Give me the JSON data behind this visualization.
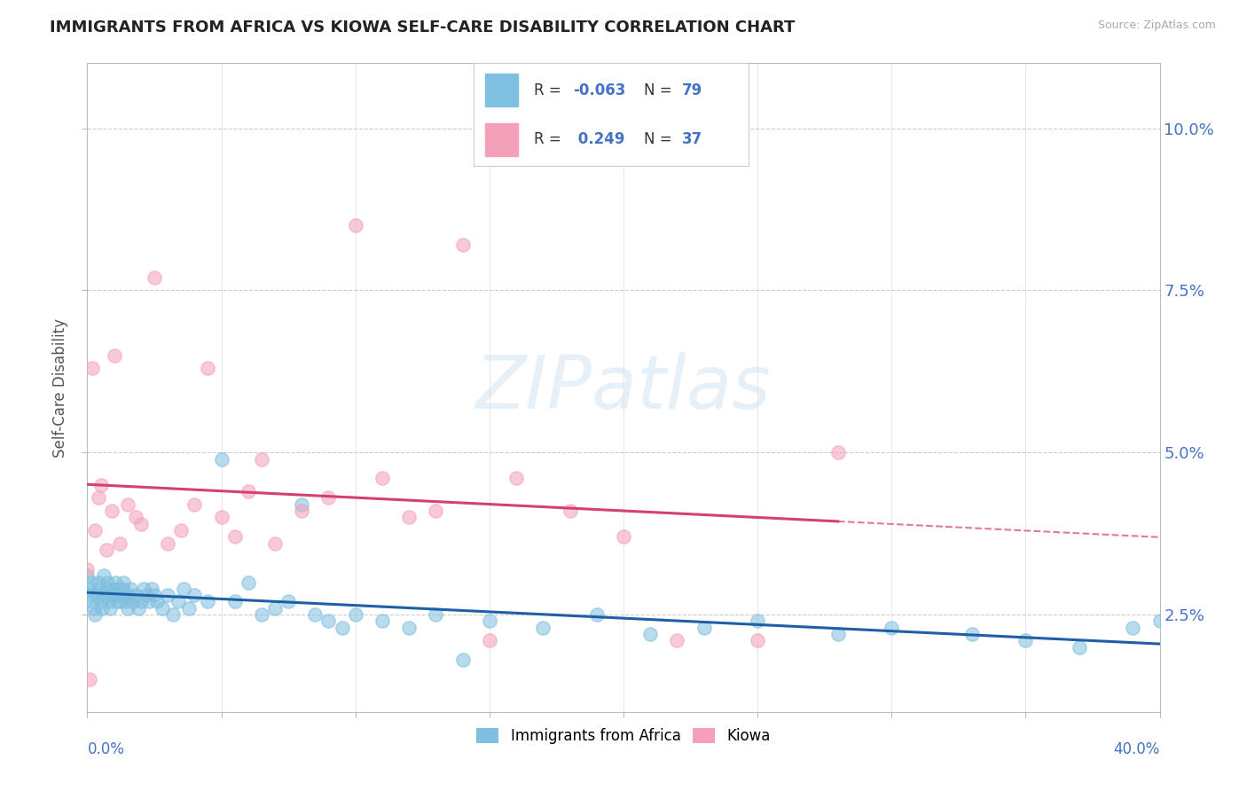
{
  "title": "IMMIGRANTS FROM AFRICA VS KIOWA SELF-CARE DISABILITY CORRELATION CHART",
  "source": "Source: ZipAtlas.com",
  "ylabel": "Self-Care Disability",
  "legend_blue_label": "Immigrants from Africa",
  "legend_pink_label": "Kiowa",
  "blue_color": "#7fbfdf",
  "pink_color": "#f4a0b8",
  "trend_blue_color": "#1f5fa6",
  "trend_pink_color": "#d44070",
  "trend_pink_dashed_color": "#d44070",
  "watermark": "ZIPatlas",
  "blue_r": "-0.063",
  "blue_n": "79",
  "pink_r": "0.249",
  "pink_n": "37",
  "blue_scatter_x": [
    0.0,
    0.05,
    0.1,
    0.15,
    0.2,
    0.25,
    0.3,
    0.35,
    0.4,
    0.45,
    0.5,
    0.55,
    0.6,
    0.65,
    0.7,
    0.75,
    0.8,
    0.85,
    0.9,
    0.95,
    1.0,
    1.05,
    1.1,
    1.15,
    1.2,
    1.25,
    1.3,
    1.35,
    1.4,
    1.45,
    1.5,
    1.55,
    1.6,
    1.7,
    1.8,
    1.9,
    2.0,
    2.1,
    2.2,
    2.3,
    2.4,
    2.5,
    2.6,
    2.8,
    3.0,
    3.2,
    3.4,
    3.6,
    3.8,
    4.0,
    4.5,
    5.0,
    5.5,
    6.0,
    6.5,
    7.0,
    7.5,
    8.0,
    8.5,
    9.0,
    9.5,
    10.0,
    11.0,
    12.0,
    13.0,
    14.0,
    15.0,
    17.0,
    19.0,
    21.0,
    23.0,
    25.0,
    28.0,
    30.0,
    33.0,
    35.0,
    37.0,
    39.0,
    40.0
  ],
  "blue_scatter_y": [
    3.1,
    2.9,
    2.8,
    3.0,
    2.7,
    2.6,
    2.5,
    2.8,
    3.0,
    2.9,
    2.7,
    2.6,
    3.1,
    2.8,
    2.9,
    3.0,
    2.7,
    2.6,
    2.8,
    2.9,
    2.8,
    3.0,
    2.7,
    2.9,
    2.8,
    2.7,
    2.9,
    3.0,
    2.8,
    2.7,
    2.6,
    2.8,
    2.9,
    2.7,
    2.8,
    2.6,
    2.7,
    2.9,
    2.8,
    2.7,
    2.9,
    2.8,
    2.7,
    2.6,
    2.8,
    2.5,
    2.7,
    2.9,
    2.6,
    2.8,
    2.7,
    4.9,
    2.7,
    3.0,
    2.5,
    2.6,
    2.7,
    4.2,
    2.5,
    2.4,
    2.3,
    2.5,
    2.4,
    2.3,
    2.5,
    1.8,
    2.4,
    2.3,
    2.5,
    2.2,
    2.3,
    2.4,
    2.2,
    2.3,
    2.2,
    2.1,
    2.0,
    2.3,
    2.4
  ],
  "pink_scatter_x": [
    0.0,
    0.1,
    0.2,
    0.3,
    0.4,
    0.5,
    0.7,
    0.9,
    1.0,
    1.2,
    1.5,
    1.8,
    2.0,
    2.5,
    3.0,
    3.5,
    4.0,
    4.5,
    5.0,
    5.5,
    6.0,
    6.5,
    7.0,
    8.0,
    9.0,
    10.0,
    11.0,
    12.0,
    13.0,
    14.0,
    15.0,
    16.0,
    18.0,
    20.0,
    22.0,
    25.0,
    28.0
  ],
  "pink_scatter_y": [
    3.2,
    1.5,
    6.3,
    3.8,
    4.3,
    4.5,
    3.5,
    4.1,
    6.5,
    3.6,
    4.2,
    4.0,
    3.9,
    7.7,
    3.6,
    3.8,
    4.2,
    6.3,
    4.0,
    3.7,
    4.4,
    4.9,
    3.6,
    4.1,
    4.3,
    8.5,
    4.6,
    4.0,
    4.1,
    8.2,
    2.1,
    4.6,
    4.1,
    3.7,
    2.1,
    2.1,
    5.0
  ],
  "xlim": [
    0,
    40
  ],
  "ylim_min": 1.0,
  "ylim_max": 11.0,
  "yticks": [
    2.5,
    5.0,
    7.5,
    10.0
  ],
  "yticklabels": [
    "2.5%",
    "5.0%",
    "7.5%",
    "10.0%"
  ],
  "blue_trend_start_x": 0,
  "blue_trend_end_x": 40,
  "pink_trend_solid_end_x": 28,
  "pink_trend_dashed_end_x": 40
}
